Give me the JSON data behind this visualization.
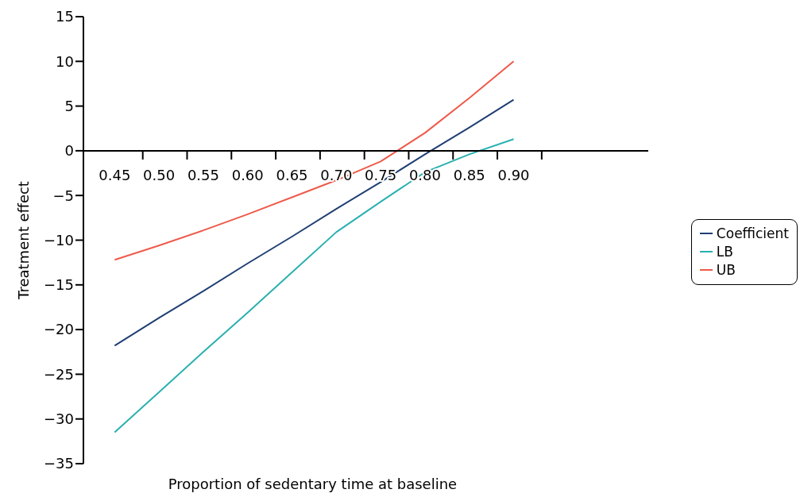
{
  "chart_data": {
    "type": "line",
    "xlabel": "Proportion of sedentary time at baseline",
    "ylabel": "Treatment effect",
    "categories": [
      "0.45",
      "0.50",
      "0.55",
      "0.60",
      "0.65",
      "0.70",
      "0.75",
      "0.80",
      "0.85",
      "0.90"
    ],
    "series": [
      {
        "name": "Coefficient",
        "color": "#1f3f73",
        "values": [
          -21.8,
          -18.7,
          -15.7,
          -12.6,
          -9.6,
          -6.5,
          -3.5,
          -0.4,
          2.6,
          5.7
        ]
      },
      {
        "name": "LB",
        "color": "#2ab0b0",
        "values": [
          -31.5,
          -27.0,
          -22.5,
          -18.1,
          -13.6,
          -9.1,
          -5.7,
          -2.4,
          -0.4,
          1.3
        ]
      },
      {
        "name": "UB",
        "color": "#ee5a4a",
        "values": [
          -12.2,
          -10.6,
          -8.9,
          -7.1,
          -5.2,
          -3.3,
          -1.2,
          2.0,
          5.9,
          10.0
        ]
      }
    ],
    "ylim": [
      -35,
      15
    ],
    "yticks": [
      -35,
      -30,
      -25,
      -20,
      -15,
      -10,
      -5,
      0,
      5,
      10,
      15
    ],
    "legend": "right",
    "grid": false,
    "marker": "none",
    "line_style": "solid"
  }
}
